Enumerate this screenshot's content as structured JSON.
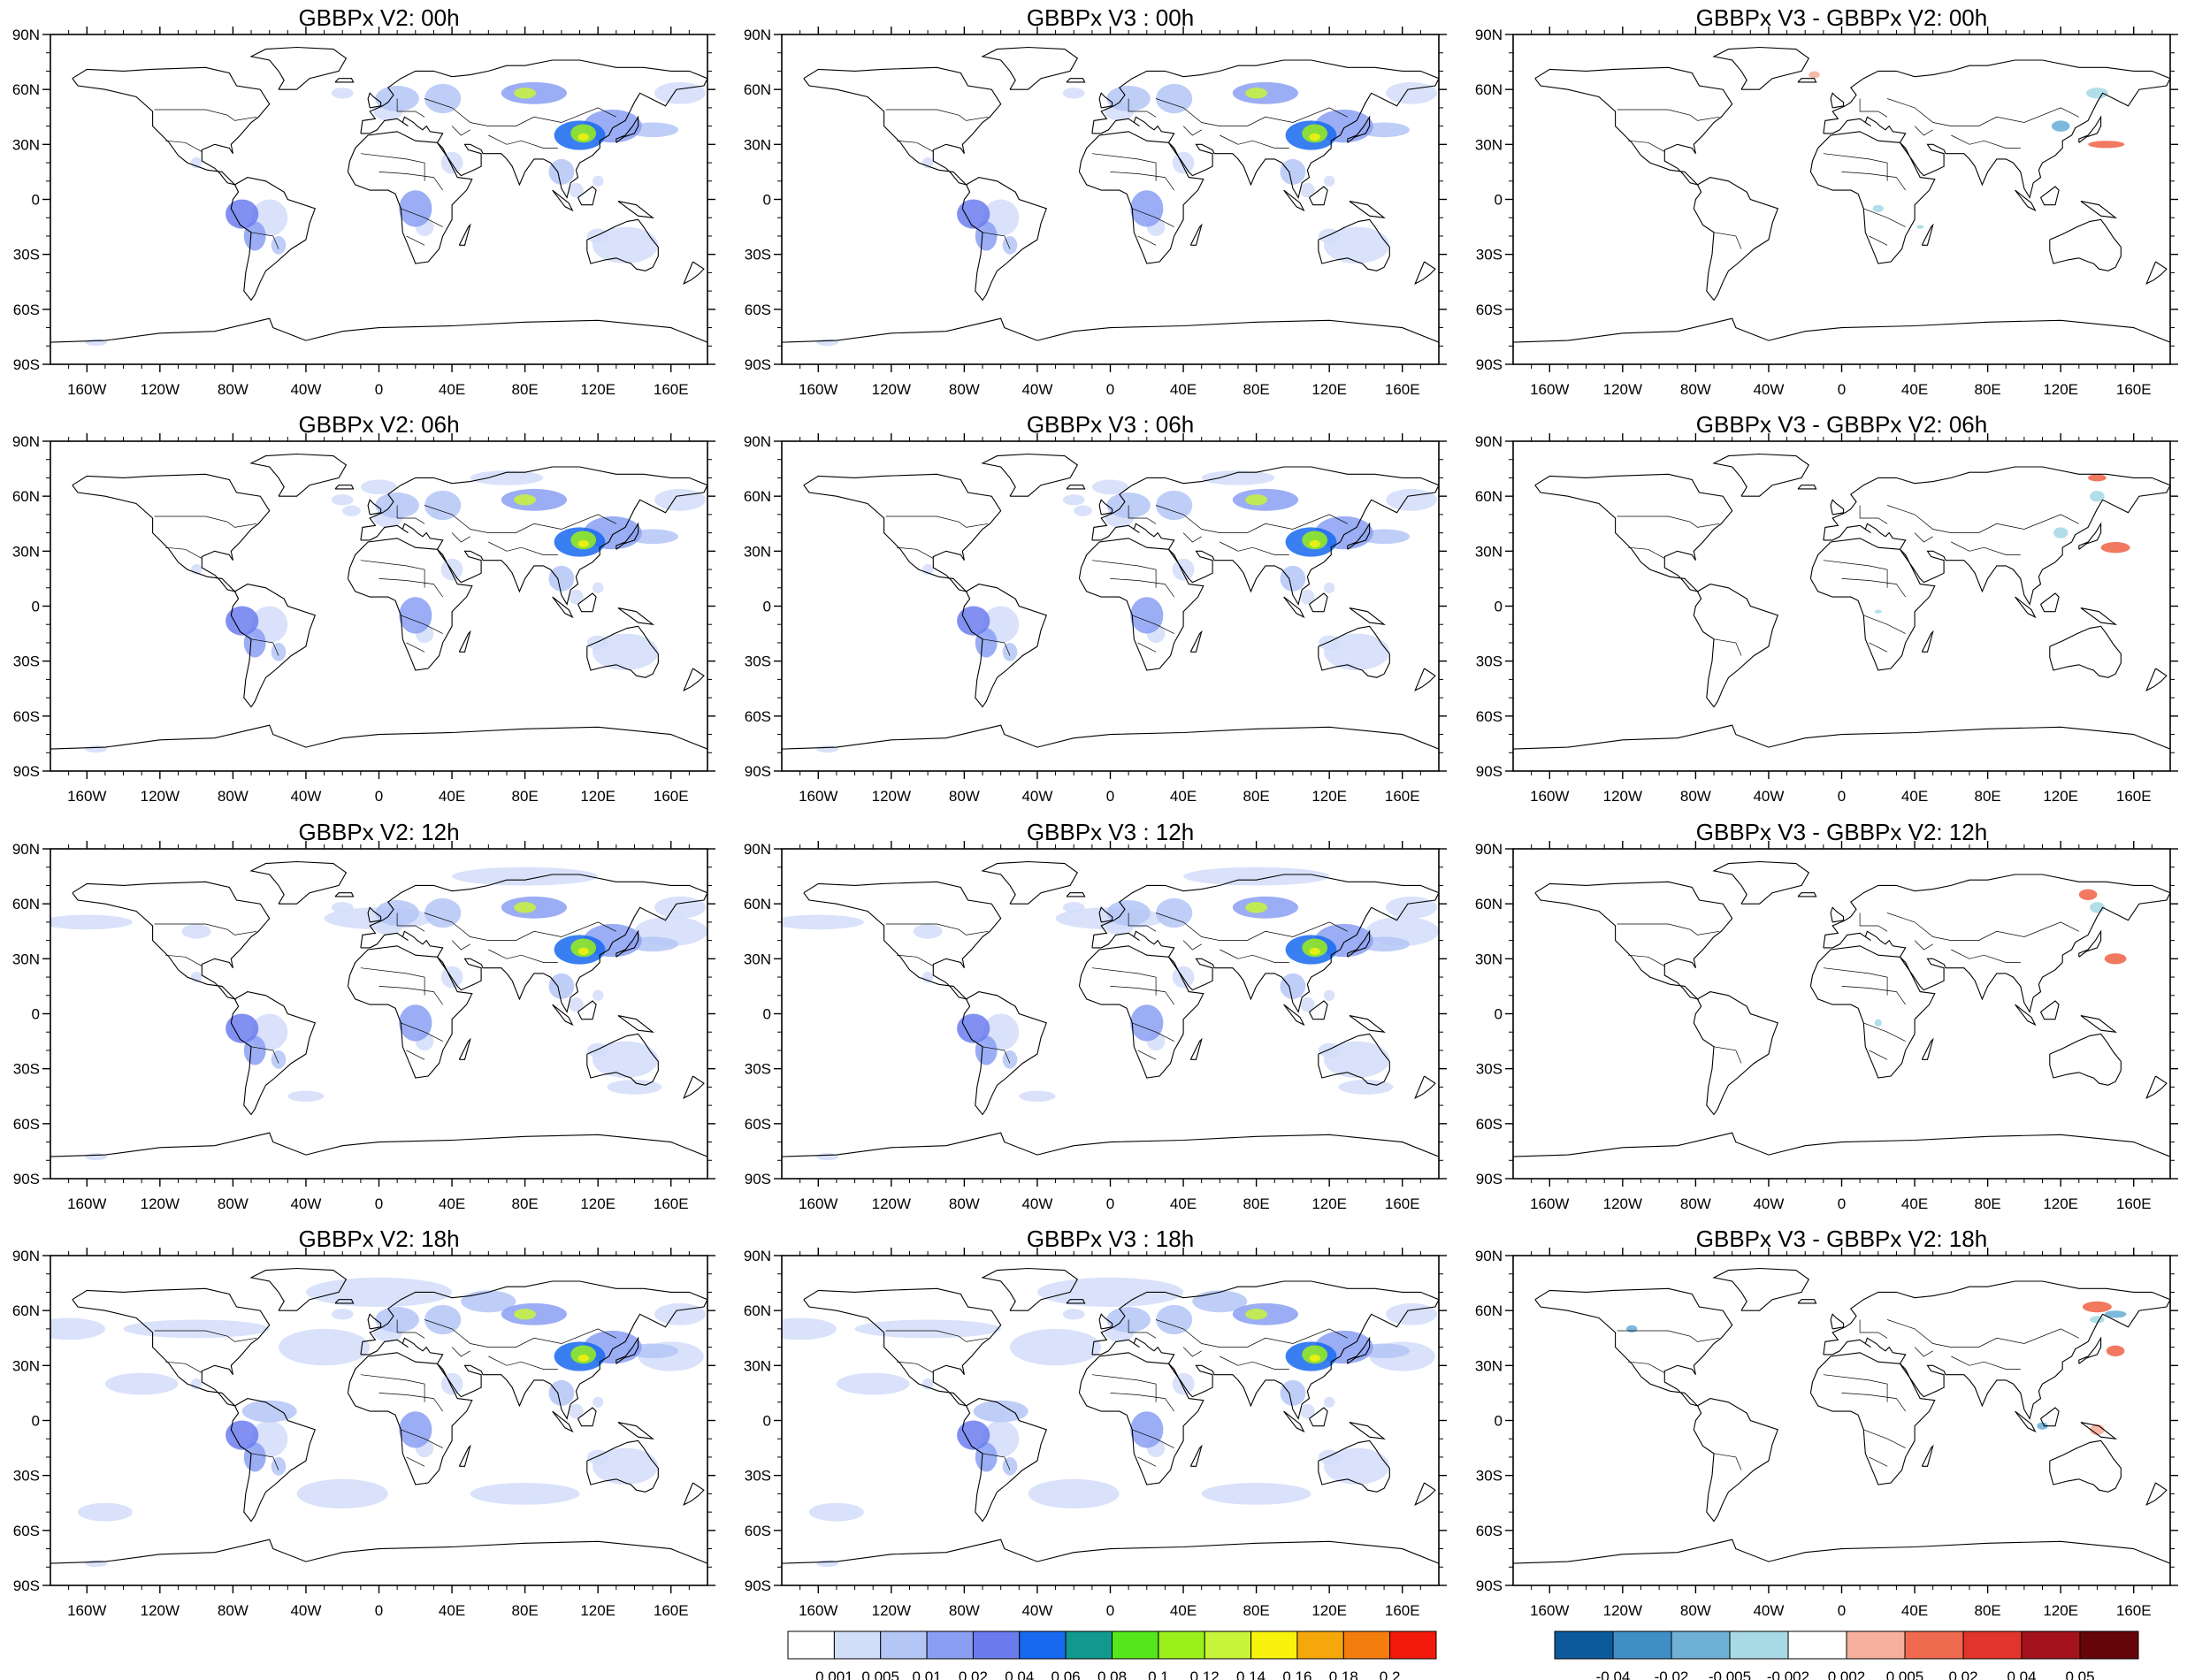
{
  "figure": {
    "rows": [
      {
        "time": "00h",
        "titles": [
          "GBBPx V2: 00h",
          "GBBPx V3 : 00h",
          "GBBPx V3 - GBBPx V2: 00h"
        ]
      },
      {
        "time": "06h",
        "titles": [
          "GBBPx V2: 06h",
          "GBBPx V3 : 06h",
          "GBBPx V3 - GBBPx V2: 06h"
        ]
      },
      {
        "time": "12h",
        "titles": [
          "GBBPx V2: 12h",
          "GBBPx V3 : 12h",
          "GBBPx V3 - GBBPx V2: 12h"
        ]
      },
      {
        "time": "18h",
        "titles": [
          "GBBPx V2: 18h",
          "GBBPx V3 : 18h",
          "GBBPx V3 - GBBPx V2: 18h"
        ]
      }
    ],
    "lat_labels": [
      "90N",
      "60N",
      "30N",
      "0",
      "30S",
      "60S",
      "90S"
    ],
    "lat_values": [
      90,
      60,
      30,
      0,
      -30,
      -60,
      -90
    ],
    "lon_labels": [
      "160W",
      "120W",
      "80W",
      "40W",
      "0",
      "40E",
      "80E",
      "120E",
      "160E"
    ],
    "lon_values": [
      -160,
      -120,
      -80,
      -40,
      0,
      40,
      80,
      120,
      160
    ],
    "lon_range": [
      -180,
      180
    ],
    "lat_range": [
      -90,
      90
    ],
    "colorbar_main": {
      "labels": [
        "0.001",
        "0.005",
        "0.01",
        "0.02",
        "0.04",
        "0.06",
        "0.08",
        "0.1",
        "0.12",
        "0.14",
        "0.16",
        "0.18",
        "0.2"
      ],
      "colors": [
        "#ffffff",
        "#d2ddf9",
        "#b4c6f6",
        "#8a9ff2",
        "#6b7cee",
        "#1769f0",
        "#11998e",
        "#55e61c",
        "#9af01a",
        "#c8f53a",
        "#f8f20c",
        "#f6a70b",
        "#f57d0e",
        "#f41a0b"
      ]
    },
    "colorbar_diff": {
      "labels": [
        "-0.04",
        "-0.02",
        "-0.005",
        "-0.002",
        "0.002",
        "0.005",
        "0.02",
        "0.04",
        "0.05"
      ],
      "colors": [
        "#0c5a9c",
        "#3f8ec5",
        "#6fb1d6",
        "#a8dae5",
        "#ffffff",
        "#f7b09e",
        "#f06a4f",
        "#e0342c",
        "#a3121d",
        "#650509"
      ]
    }
  }
}
